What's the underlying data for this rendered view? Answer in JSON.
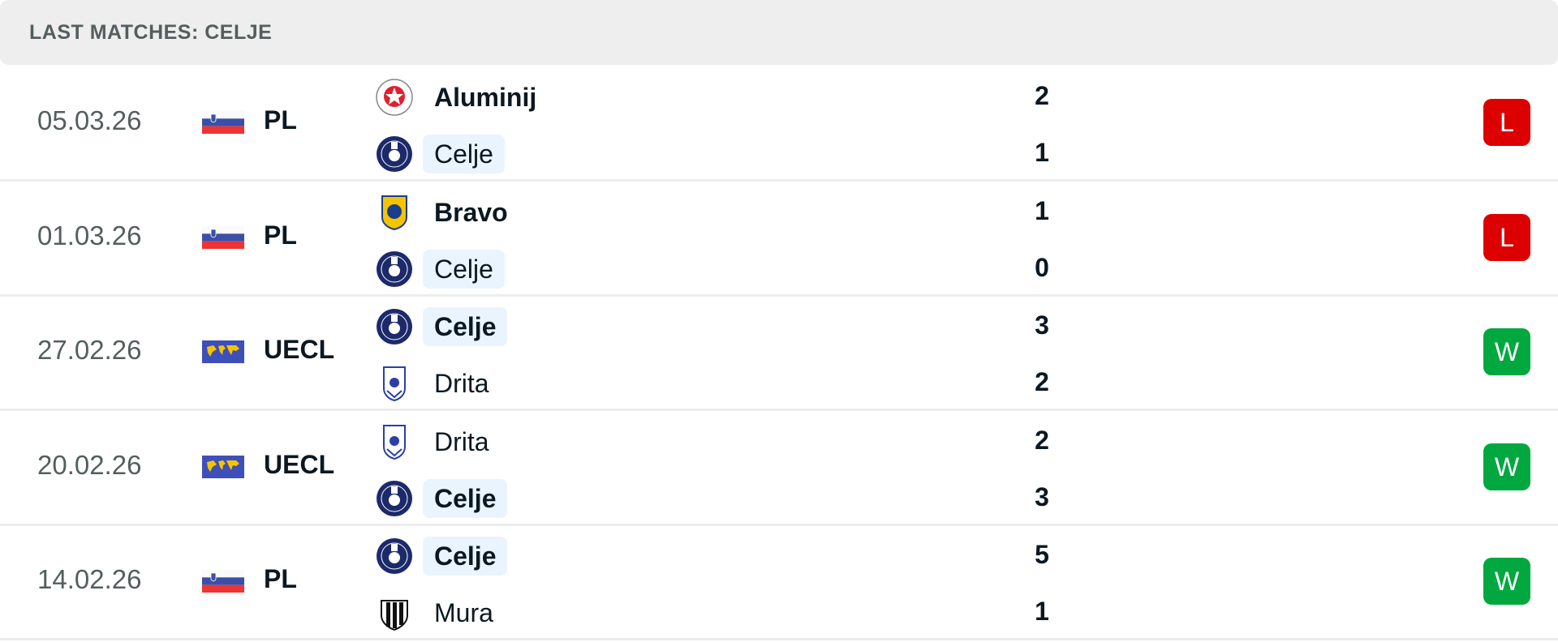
{
  "title": "LAST MATCHES: CELJE",
  "colors": {
    "loss": "#dc0000",
    "win": "#00a83f",
    "highlight": "#eaf4ff"
  },
  "matches": [
    {
      "date": "05.03.26",
      "flag": "slovenia-flag",
      "league": "PL",
      "home": {
        "name": "Aluminij",
        "logo": "aluminij-crest",
        "bold": true,
        "hl": false
      },
      "away": {
        "name": "Celje",
        "logo": "celje-crest",
        "bold": false,
        "hl": true
      },
      "home_score": "2",
      "away_score": "1",
      "result": "L"
    },
    {
      "date": "01.03.26",
      "flag": "slovenia-flag",
      "league": "PL",
      "home": {
        "name": "Bravo",
        "logo": "bravo-crest",
        "bold": true,
        "hl": false
      },
      "away": {
        "name": "Celje",
        "logo": "celje-crest",
        "bold": false,
        "hl": true
      },
      "home_score": "1",
      "away_score": "0",
      "result": "L"
    },
    {
      "date": "27.02.26",
      "flag": "world-flag",
      "league": "UECL",
      "home": {
        "name": "Celje",
        "logo": "celje-crest",
        "bold": true,
        "hl": true
      },
      "away": {
        "name": "Drita",
        "logo": "drita-crest",
        "bold": false,
        "hl": false
      },
      "home_score": "3",
      "away_score": "2",
      "result": "W"
    },
    {
      "date": "20.02.26",
      "flag": "world-flag",
      "league": "UECL",
      "home": {
        "name": "Drita",
        "logo": "drita-crest",
        "bold": false,
        "hl": false
      },
      "away": {
        "name": "Celje",
        "logo": "celje-crest",
        "bold": true,
        "hl": true
      },
      "home_score": "2",
      "away_score": "3",
      "result": "W"
    },
    {
      "date": "14.02.26",
      "flag": "slovenia-flag",
      "league": "PL",
      "home": {
        "name": "Celje",
        "logo": "celje-crest",
        "bold": true,
        "hl": true
      },
      "away": {
        "name": "Mura",
        "logo": "mura-crest",
        "bold": false,
        "hl": false
      },
      "home_score": "5",
      "away_score": "1",
      "result": "W"
    }
  ]
}
